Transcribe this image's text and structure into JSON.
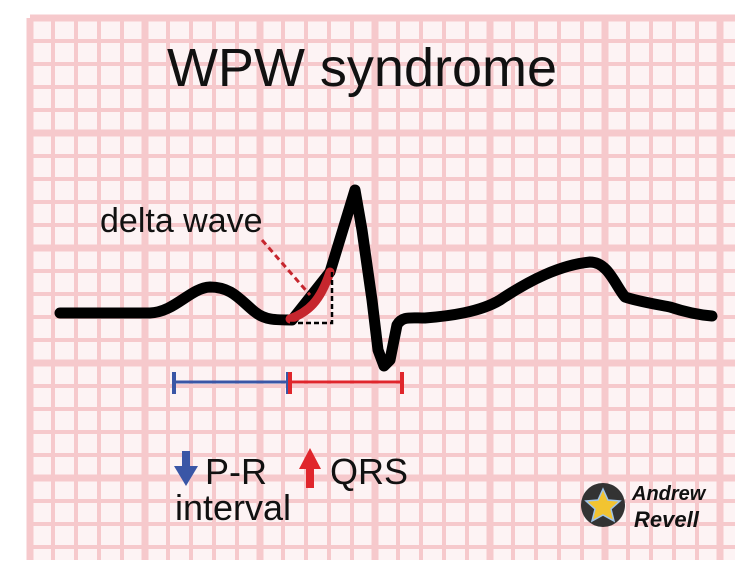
{
  "title": "WPW syndrome",
  "labels": {
    "delta_wave": "delta wave",
    "pr_arrow": "down-arrow",
    "pr_line1": "P-R",
    "pr_line2": "interval",
    "qrs_arrow": "up-arrow",
    "qrs": "QRS"
  },
  "logo": {
    "line1": "Andrew",
    "line2": "Revell"
  },
  "colors": {
    "grid": "#f6c9cc",
    "trace": "#000000",
    "delta": "#c6262e",
    "pr_bar": "#3a56a6",
    "qrs_bar": "#e0262c",
    "text": "#111111"
  }
}
